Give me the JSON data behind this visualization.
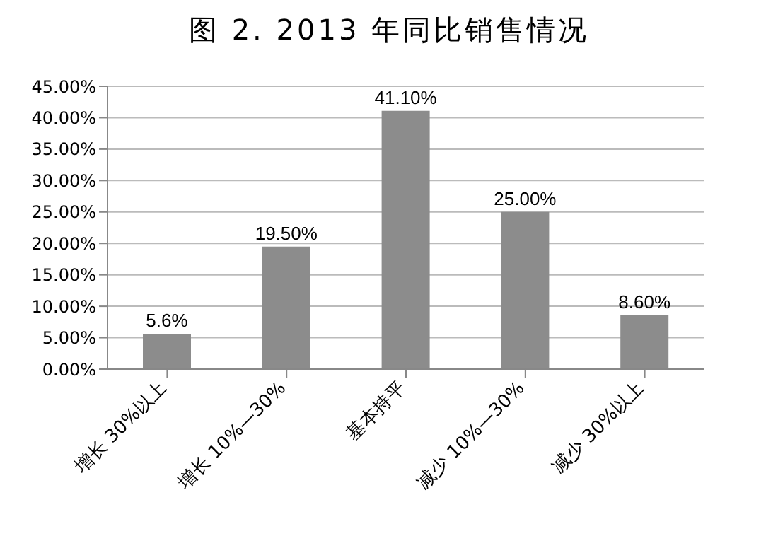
{
  "chart_data": {
    "type": "bar",
    "title": "图 2.  2013 年同比销售情况",
    "categories": [
      "增长 30%以上",
      "增长 10%—30%",
      "基本持平",
      "减少 10%—30%",
      "减少 30%以上"
    ],
    "values": [
      5.6,
      19.5,
      41.1,
      25,
      8.6
    ],
    "value_labels": [
      "5.6%",
      "19.50%",
      "41.10%",
      "25.00%",
      "8.60%"
    ],
    "color": "#8c8c8c",
    "ylim": [
      0,
      45
    ],
    "yticks": [
      {
        "value": 0,
        "label": "0.00%"
      },
      {
        "value": 5,
        "label": "5.00%"
      },
      {
        "value": 10,
        "label": "10.00%"
      },
      {
        "value": 15,
        "label": "15.00%"
      },
      {
        "value": 20,
        "label": "20.00%"
      },
      {
        "value": 25,
        "label": "25.00%"
      },
      {
        "value": 30,
        "label": "30.00%"
      },
      {
        "value": 35,
        "label": "35.00%"
      },
      {
        "value": 40,
        "label": "40.00%"
      },
      {
        "value": 45,
        "label": "45.00%"
      }
    ],
    "grid": "y"
  }
}
